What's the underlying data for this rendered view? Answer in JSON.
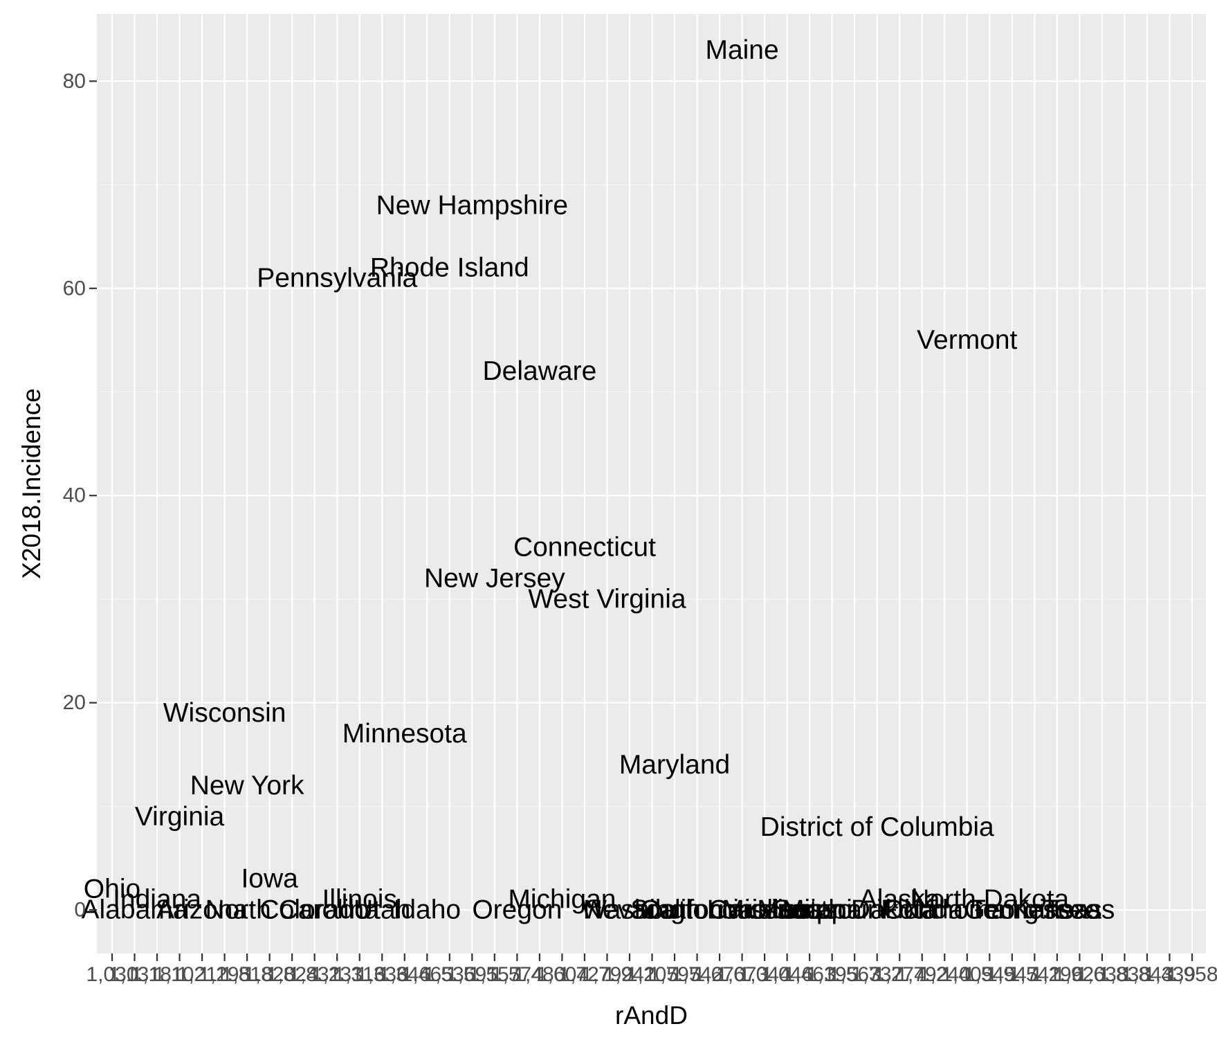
{
  "chart_data": {
    "type": "scatter",
    "title": "",
    "xlabel": "rAndD",
    "ylabel": "X2018.Incidence",
    "x_scale": "discrete",
    "grid": true,
    "ylim": [
      -4.2,
      86.5
    ],
    "y_ticks": [
      0,
      20,
      40,
      60,
      80
    ],
    "x_tick_labels": [
      "1,030",
      "1,131",
      "1,181",
      "1,102",
      "1,211",
      "1,295",
      "1,818",
      "1,820",
      "1,824",
      "1,831",
      "1,231",
      "1,316",
      "1,336",
      "1,346",
      "1,465",
      "1,536",
      "1,591",
      "1,557",
      "1,574",
      "1,480",
      "1,604",
      "1,727",
      "1,792",
      "1,941",
      "1,205",
      "1,795",
      "1,742",
      "1,670",
      "1,673",
      "1,044",
      "1,046",
      "1,463",
      "1,195",
      "1,563",
      "1,737",
      "1,274",
      "1,792",
      "1,240",
      "1,409",
      "1,545",
      "1,947",
      "1,541",
      "1,296",
      "1,920",
      "1,638",
      "1,838",
      "1,843",
      "1,439",
      "1,958"
    ],
    "points": [
      {
        "label": "Ohio",
        "x": 0,
        "y": 2
      },
      {
        "label": "Alabama",
        "x": 1,
        "y": 0
      },
      {
        "label": "Indiana",
        "x": 2,
        "y": 1
      },
      {
        "label": "Virginia",
        "x": 3,
        "y": 9
      },
      {
        "label": "Arizona",
        "x": 4,
        "y": 0
      },
      {
        "label": "Wisconsin",
        "x": 5,
        "y": 19
      },
      {
        "label": "New York",
        "x": 6,
        "y": 12
      },
      {
        "label": "Iowa",
        "x": 7,
        "y": 3
      },
      {
        "label": "North Carolina",
        "x": 8,
        "y": 0
      },
      {
        "label": "Colorado",
        "x": 9,
        "y": 0
      },
      {
        "label": "Pennsylvania",
        "x": 10,
        "y": 61
      },
      {
        "label": "Illinois",
        "x": 11,
        "y": 1
      },
      {
        "label": "Utah",
        "x": 12,
        "y": 0
      },
      {
        "label": "Minnesota",
        "x": 13,
        "y": 17
      },
      {
        "label": "Idaho",
        "x": 14,
        "y": 0
      },
      {
        "label": "Rhode Island",
        "x": 15,
        "y": 62
      },
      {
        "label": "New Hampshire",
        "x": 16,
        "y": 68
      },
      {
        "label": "New Jersey",
        "x": 17,
        "y": 32
      },
      {
        "label": "Oregon",
        "x": 18,
        "y": 0
      },
      {
        "label": "Delaware",
        "x": 19,
        "y": 52
      },
      {
        "label": "Michigan",
        "x": 20,
        "y": 1
      },
      {
        "label": "Connecticut",
        "x": 21,
        "y": 35
      },
      {
        "label": "West Virginia",
        "x": 22,
        "y": 30
      },
      {
        "label": "Nevada",
        "x": 23,
        "y": 0
      },
      {
        "label": "Washington",
        "x": 24,
        "y": 0
      },
      {
        "label": "Maryland",
        "x": 25,
        "y": 14
      },
      {
        "label": "California",
        "x": 26,
        "y": 0
      },
      {
        "label": "South Carolina",
        "x": 27,
        "y": 0
      },
      {
        "label": "Maine",
        "x": 28,
        "y": 83
      },
      {
        "label": "Louisiana",
        "x": 29,
        "y": 0
      },
      {
        "label": "Mississippi",
        "x": 30,
        "y": 0
      },
      {
        "label": "Montana",
        "x": 31,
        "y": 0
      },
      {
        "label": "Missouri",
        "x": 32,
        "y": 0
      },
      {
        "label": "South Dakota",
        "x": 33,
        "y": 0
      },
      {
        "label": "District of Columbia",
        "x": 34,
        "y": 8
      },
      {
        "label": "Alaska",
        "x": 35,
        "y": 1
      },
      {
        "label": "Florida",
        "x": 36,
        "y": 0
      },
      {
        "label": "Oklahoma",
        "x": 37,
        "y": 0
      },
      {
        "label": "Vermont",
        "x": 38,
        "y": 55
      },
      {
        "label": "North Dakota",
        "x": 39,
        "y": 1
      },
      {
        "label": "Georgia",
        "x": 40,
        "y": 0
      },
      {
        "label": "Tennessee",
        "x": 41,
        "y": 0
      },
      {
        "label": "Kansas",
        "x": 42,
        "y": 0
      },
      {
        "label": "Texas",
        "x": 43,
        "y": 0
      }
    ]
  }
}
